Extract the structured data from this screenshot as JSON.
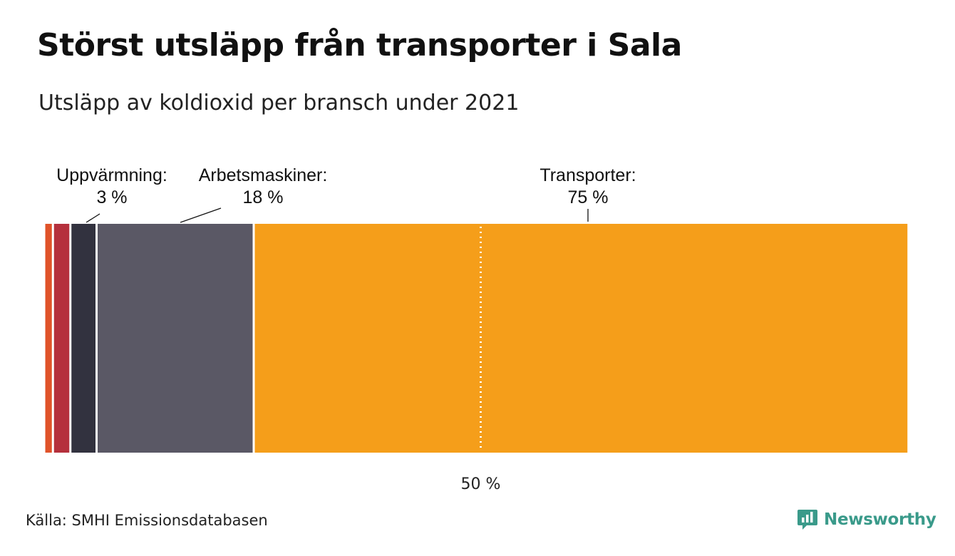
{
  "title": "Störst utsläpp från transporter i Sala",
  "subtitle": "Utsläpp av koldioxid per bransch under 2021",
  "source": "Källa: SMHI Emissionsdatabasen",
  "brand": {
    "name": "Newsworthy",
    "icon": "newsworthy-logo-icon",
    "color": "#3a9a8a"
  },
  "chart_data": {
    "type": "bar",
    "orientation": "horizontal-stacked",
    "xlim": [
      0,
      100
    ],
    "unit": "%",
    "categories": [
      "",
      "",
      "Uppvärmning",
      "Arbetsmaskiner",
      "Transporter"
    ],
    "values": [
      1,
      2,
      3,
      18,
      75
    ],
    "colors": [
      "#e0532a",
      "#b5303c",
      "#32323f",
      "#5a5865",
      "#f59e1a"
    ],
    "annotations": [
      {
        "label": "Uppvärmning:",
        "value": "3 %",
        "category": "Uppvärmning"
      },
      {
        "label": "Arbetsmaskiner:",
        "value": "18 %",
        "category": "Arbetsmaskiner"
      },
      {
        "label": "Transporter:",
        "value": "75 %",
        "category": "Transporter"
      }
    ],
    "reference_line": {
      "value": 50,
      "label": "50 %",
      "style": "dotted"
    }
  }
}
